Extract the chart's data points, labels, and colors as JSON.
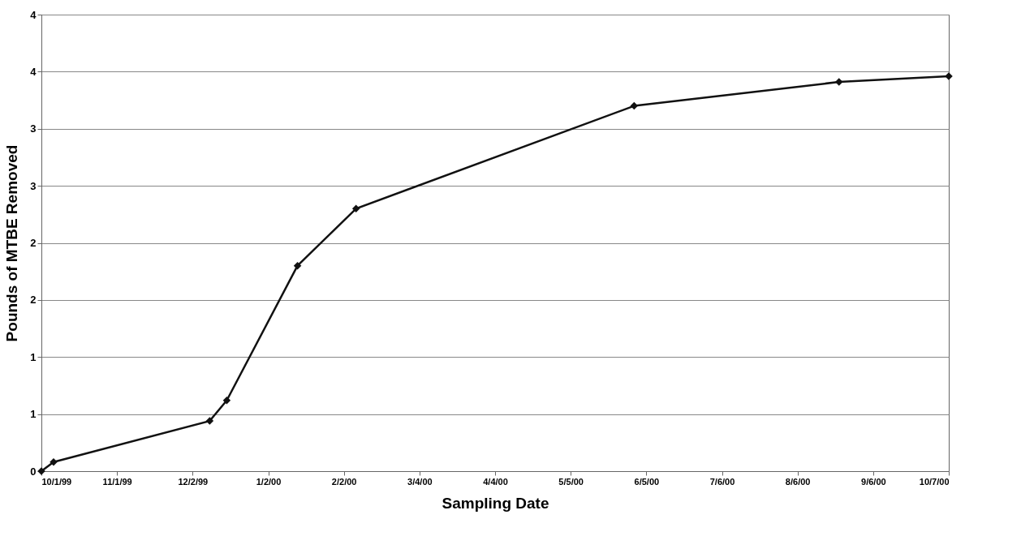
{
  "chart_data": {
    "type": "line",
    "xlabel": "Sampling Date",
    "ylabel": "Pounds of MTBE Removed",
    "x": [
      "1999-10-01",
      "1999-10-06",
      "1999-12-09",
      "1999-12-16",
      "2000-01-14",
      "2000-02-07",
      "2000-05-31",
      "2000-08-23",
      "2000-10-07"
    ],
    "series": [
      {
        "color": "#111111",
        "values": [
          0,
          0.08,
          0.44,
          0.62,
          1.8,
          2.3,
          3.2,
          3.41,
          3.46
        ]
      }
    ],
    "xlim": [
      "1999-10-01",
      "2000-10-07"
    ],
    "xticks": [
      {
        "value": "1999-10-01",
        "label": "10/1/99"
      },
      {
        "value": "1999-11-01",
        "label": "11/1/99"
      },
      {
        "value": "1999-12-02",
        "label": "12/2/99"
      },
      {
        "value": "2000-01-02",
        "label": "1/2/00"
      },
      {
        "value": "2000-02-02",
        "label": "2/2/00"
      },
      {
        "value": "2000-03-04",
        "label": "3/4/00"
      },
      {
        "value": "2000-04-04",
        "label": "4/4/00"
      },
      {
        "value": "2000-05-05",
        "label": "5/5/00"
      },
      {
        "value": "2000-06-05",
        "label": "6/5/00"
      },
      {
        "value": "2000-07-06",
        "label": "7/6/00"
      },
      {
        "value": "2000-08-06",
        "label": "8/6/00"
      },
      {
        "value": "2000-09-06",
        "label": "9/6/00"
      },
      {
        "value": "2000-10-07",
        "label": "10/7/00"
      }
    ],
    "ylim": [
      0,
      4
    ],
    "yticks": [
      {
        "value": 0,
        "label": "0"
      },
      {
        "value": 0.5,
        "label": "1"
      },
      {
        "value": 1,
        "label": "1"
      },
      {
        "value": 1.5,
        "label": "2"
      },
      {
        "value": 2,
        "label": "2"
      },
      {
        "value": 2.5,
        "label": "3"
      },
      {
        "value": 3,
        "label": "3"
      },
      {
        "value": 3.5,
        "label": "4"
      },
      {
        "value": 4,
        "label": "4"
      }
    ],
    "grid": "y",
    "marker": "diamond",
    "line_style": "solid"
  }
}
